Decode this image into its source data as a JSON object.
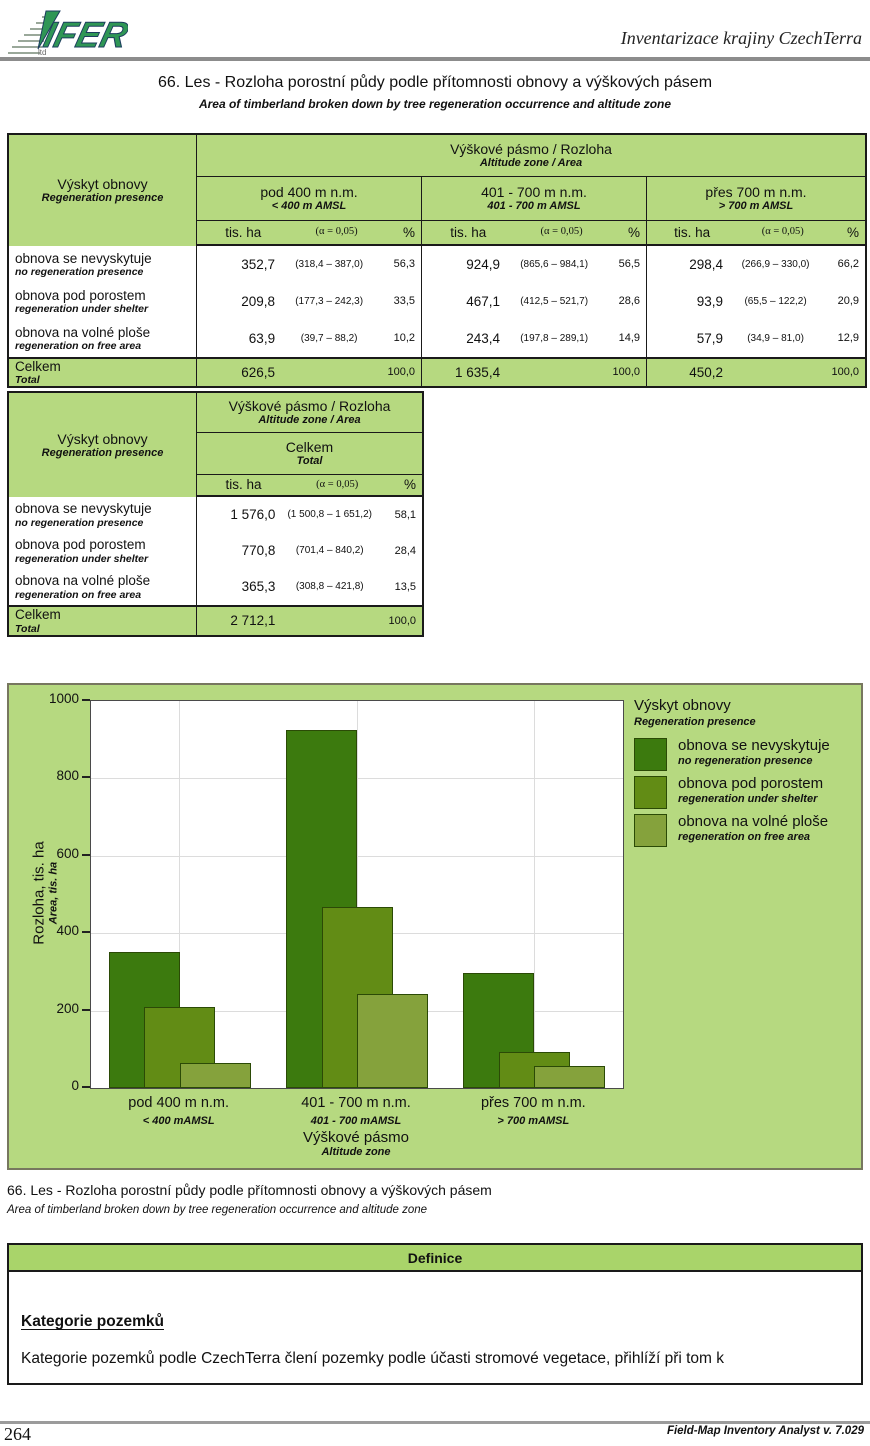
{
  "header": {
    "logo": "IFER",
    "logo_sub": "ltd",
    "brand": "Inventarizace krajiny CzechTerra"
  },
  "title": {
    "cs": "66. Les - Rozloha porostní půdy podle přítomnosti obnovy a výškových pásem",
    "en": "Area of timberland broken down by tree regeneration occurrence and altitude zone"
  },
  "table1": {
    "row_header": {
      "cs": "Výskyt obnovy",
      "en": "Regeneration presence"
    },
    "group_header": {
      "cs": "Výškové pásmo / Rozloha",
      "en": "Altitude zone / Area"
    },
    "col_headers": [
      {
        "cs": "pod 400 m n.m.",
        "en": "< 400 m AMSL"
      },
      {
        "cs": "401 - 700 m n.m.",
        "en": "401 - 700 m AMSL"
      },
      {
        "cs": "přes 700 m n.m.",
        "en": "> 700 m AMSL"
      }
    ],
    "sub_header": {
      "unit": "tis. ha",
      "alpha": "(α = 0,05)",
      "pct": "%"
    },
    "rows": [
      {
        "cs": "obnova se nevyskytuje",
        "en": "no regeneration presence",
        "cells": [
          {
            "v": "352,7",
            "ci": "(318,4  –  387,0)",
            "p": "56,3"
          },
          {
            "v": "924,9",
            "ci": "(865,6  –  984,1)",
            "p": "56,5"
          },
          {
            "v": "298,4",
            "ci": "(266,9  –  330,0)",
            "p": "66,2"
          }
        ]
      },
      {
        "cs": "obnova pod porostem",
        "en": "regeneration under shelter",
        "cells": [
          {
            "v": "209,8",
            "ci": "(177,3  –  242,3)",
            "p": "33,5"
          },
          {
            "v": "467,1",
            "ci": "(412,5  –  521,7)",
            "p": "28,6"
          },
          {
            "v": "93,9",
            "ci": "(65,5  –  122,2)",
            "p": "20,9"
          }
        ]
      },
      {
        "cs": "obnova na volné ploše",
        "en": "regeneration on free area",
        "cells": [
          {
            "v": "63,9",
            "ci": "(39,7  –  88,2)",
            "p": "10,2"
          },
          {
            "v": "243,4",
            "ci": "(197,8  –  289,1)",
            "p": "14,9"
          },
          {
            "v": "57,9",
            "ci": "(34,9  –  81,0)",
            "p": "12,9"
          }
        ]
      }
    ],
    "total": {
      "cs": "Celkem",
      "en": "Total",
      "cells": [
        {
          "v": "626,5",
          "p": "100,0"
        },
        {
          "v": "1 635,4",
          "p": "100,0"
        },
        {
          "v": "450,2",
          "p": "100,0"
        }
      ]
    }
  },
  "table2": {
    "row_header": {
      "cs": "Výskyt obnovy",
      "en": "Regeneration presence"
    },
    "group_header": {
      "cs": "Výškové pásmo / Rozloha",
      "en": "Altitude zone / Area"
    },
    "col_header": {
      "cs": "Celkem",
      "en": "Total"
    },
    "sub_header": {
      "unit": "tis. ha",
      "alpha": "(α = 0,05)",
      "pct": "%"
    },
    "rows": [
      {
        "cs": "obnova se nevyskytuje",
        "en": "no regeneration presence",
        "cell": {
          "v": "1 576,0",
          "ci": "(1 500,8 – 1 651,2)",
          "p": "58,1"
        }
      },
      {
        "cs": "obnova pod porostem",
        "en": "regeneration under shelter",
        "cell": {
          "v": "770,8",
          "ci": "(701,4  –  840,2)",
          "p": "28,4"
        }
      },
      {
        "cs": "obnova na volné ploše",
        "en": "regeneration on free area",
        "cell": {
          "v": "365,3",
          "ci": "(308,8  –  421,8)",
          "p": "13,5"
        }
      }
    ],
    "total": {
      "cs": "Celkem",
      "en": "Total",
      "cell": {
        "v": "2 712,1",
        "p": "100,0"
      }
    }
  },
  "chart_data": {
    "type": "bar",
    "legend_title": "Výskyt obnovy",
    "legend_title_en": "Regeneration presence",
    "categories": [
      {
        "cs": "pod 400 m n.m.",
        "en": "< 400 mAMSL"
      },
      {
        "cs": "401 - 700 m n.m.",
        "en": "401 - 700 mAMSL"
      },
      {
        "cs": "přes 700 m n.m.",
        "en": "> 700 mAMSL"
      }
    ],
    "series": [
      {
        "name": "obnova se nevyskytuje",
        "name_en": "no regeneration presence",
        "color": "#3c7a0e",
        "values": [
          352.7,
          924.9,
          298.4
        ]
      },
      {
        "name": "obnova pod porostem",
        "name_en": "regeneration under shelter",
        "color": "#628c15",
        "values": [
          209.8,
          467.1,
          93.9
        ]
      },
      {
        "name": "obnova na volné ploše",
        "name_en": "regeneration on free area",
        "color": "#85a23c",
        "values": [
          63.9,
          243.4,
          57.9
        ]
      }
    ],
    "ylabel": "Rozloha, tis. ha",
    "ylabel_en": "Area, tis. ha",
    "xlabel": "Výškové pásmo",
    "xlabel_en": "Altitude zone",
    "ylim": [
      0,
      1000
    ],
    "yticks": [
      0,
      200,
      400,
      600,
      800,
      1000
    ],
    "grid": true,
    "legend_position": "right"
  },
  "caption": {
    "cs": "66. Les - Rozloha porostní půdy podle přítomnosti obnovy a výškových pásem",
    "en": "Area of timberland broken down by tree regeneration occurrence and altitude zone"
  },
  "definitions": {
    "header": "Definice",
    "subheading": "Kategorie pozemků",
    "body": "Kategorie pozemků podle CzechTerra člení pozemky podle účasti stromové vegetace, přihlíží při tom k"
  },
  "footer": {
    "page_number": "264",
    "app": "Field-Map Inventory Analyst v. 7.029"
  },
  "colors": {
    "table_green": "#b6d980",
    "definice_green": "#a9d46a",
    "panel_green": "#b6d980"
  }
}
